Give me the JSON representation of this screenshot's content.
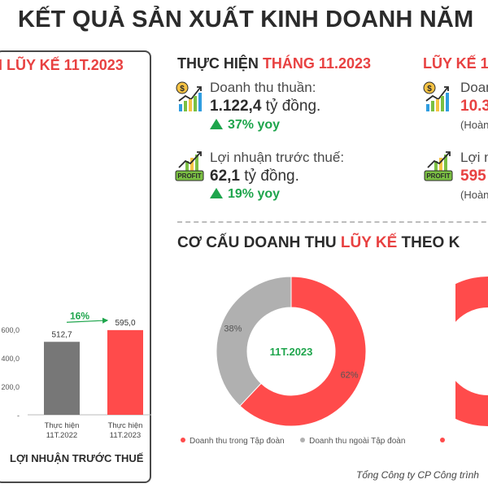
{
  "title": "KẾT QUẢ SẢN XUẤT KINH DOANH NĂM",
  "left_panel": {
    "heading_prefix": "N ",
    "heading_highlight": "LŨY KẾ 11T.2023",
    "caption": "LỢI NHUẬN TRƯỚC THUẾ"
  },
  "monthly": {
    "heading_prefix": "THỰC HIỆN ",
    "heading_highlight": "THÁNG 11.2023",
    "revenue_label": "Doanh thu thuần:",
    "revenue_value": "1.122,4",
    "revenue_unit": " tỷ đồng.",
    "revenue_growth": "37% yoy",
    "profit_label": "Lợi nhuận trước thuế:",
    "profit_value": "62,1",
    "profit_unit": " tỷ đồng.",
    "profit_growth": "19% yoy"
  },
  "cumulative": {
    "heading": "LŨY KẾ 1",
    "revenue_label": "Doan",
    "revenue_value": "10.3",
    "revenue_note": "(Hoàn",
    "profit_label": "Lợi n",
    "profit_value": "595",
    "profit_note": "(Hoàn"
  },
  "structure": {
    "heading_prefix": "CƠ CẤU DOANH THU ",
    "heading_highlight": "LŨY KẾ",
    "heading_suffix": " THEO K"
  },
  "footer": "Tổng Công ty CP Công trình",
  "colors": {
    "red": "#e84141",
    "gray_bar": "#777777",
    "donut_gray": "#b0b0b0",
    "green": "#1ea54c",
    "dark_text": "#2b2b2b"
  },
  "chart_data": [
    {
      "type": "bar",
      "categories": [
        "Thực hiện\n11T.2022",
        "Thực hiện\n11T.2023"
      ],
      "values": [
        512.7,
        595.0
      ],
      "value_labels": [
        "512,7",
        "595,0"
      ],
      "growth_label": "16%",
      "yticks": [
        "600,0",
        "400,0",
        "200,0",
        "-"
      ],
      "ylim": [
        0,
        600
      ],
      "title": "LỢI NHUẬN TRƯỚC THUẾ",
      "colors": [
        "#777777",
        "#ff4b4b"
      ]
    },
    {
      "type": "pie",
      "center_label": "11T.2023",
      "labels": [
        "Doanh thu trong Tập đoàn",
        "Doanh thu ngoài Tập đoàn"
      ],
      "values": [
        62,
        38
      ],
      "value_labels": [
        "62%",
        "38%"
      ],
      "colors": [
        "#ff4b4b",
        "#b0b0b0"
      ]
    }
  ]
}
